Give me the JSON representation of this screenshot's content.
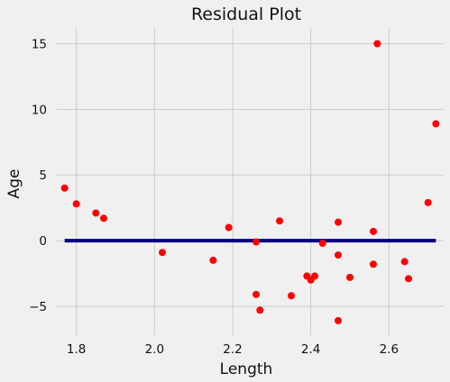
{
  "chart_data": {
    "type": "scatter",
    "title": "Residual Plot",
    "xlabel": "Length",
    "ylabel": "Age",
    "xlim": [
      1.75,
      2.74
    ],
    "ylim": [
      -7.2,
      16.2
    ],
    "xticks": [
      1.8,
      2.0,
      2.2,
      2.4,
      2.6
    ],
    "xtick_labels": [
      "1.8",
      "2.0",
      "2.2",
      "2.4",
      "2.6"
    ],
    "yticks": [
      -5,
      0,
      5,
      10,
      15
    ],
    "ytick_labels": [
      "−5",
      "0",
      "5",
      "10",
      "15"
    ],
    "grid": true,
    "point_color": "#ff0000",
    "line_color": "#000080",
    "zero_line": {
      "x": [
        1.77,
        2.72
      ],
      "y": 0
    },
    "points": [
      {
        "x": 1.77,
        "y": 4.0
      },
      {
        "x": 1.8,
        "y": 2.8
      },
      {
        "x": 1.85,
        "y": 2.1
      },
      {
        "x": 1.87,
        "y": 1.7
      },
      {
        "x": 2.02,
        "y": -0.9
      },
      {
        "x": 2.15,
        "y": -1.5
      },
      {
        "x": 2.19,
        "y": 1.0
      },
      {
        "x": 2.26,
        "y": -0.1
      },
      {
        "x": 2.26,
        "y": -4.1
      },
      {
        "x": 2.27,
        "y": -5.3
      },
      {
        "x": 2.32,
        "y": 1.5
      },
      {
        "x": 2.35,
        "y": -4.2
      },
      {
        "x": 2.39,
        "y": -2.7
      },
      {
        "x": 2.4,
        "y": -3.0
      },
      {
        "x": 2.41,
        "y": -2.7
      },
      {
        "x": 2.43,
        "y": -0.2
      },
      {
        "x": 2.47,
        "y": 1.4
      },
      {
        "x": 2.47,
        "y": -1.1
      },
      {
        "x": 2.47,
        "y": -6.1
      },
      {
        "x": 2.5,
        "y": -2.8
      },
      {
        "x": 2.56,
        "y": 0.7
      },
      {
        "x": 2.56,
        "y": -1.8
      },
      {
        "x": 2.57,
        "y": 15.0
      },
      {
        "x": 2.64,
        "y": -1.6
      },
      {
        "x": 2.65,
        "y": -2.9
      },
      {
        "x": 2.7,
        "y": 2.9
      },
      {
        "x": 2.72,
        "y": 8.9
      }
    ]
  }
}
